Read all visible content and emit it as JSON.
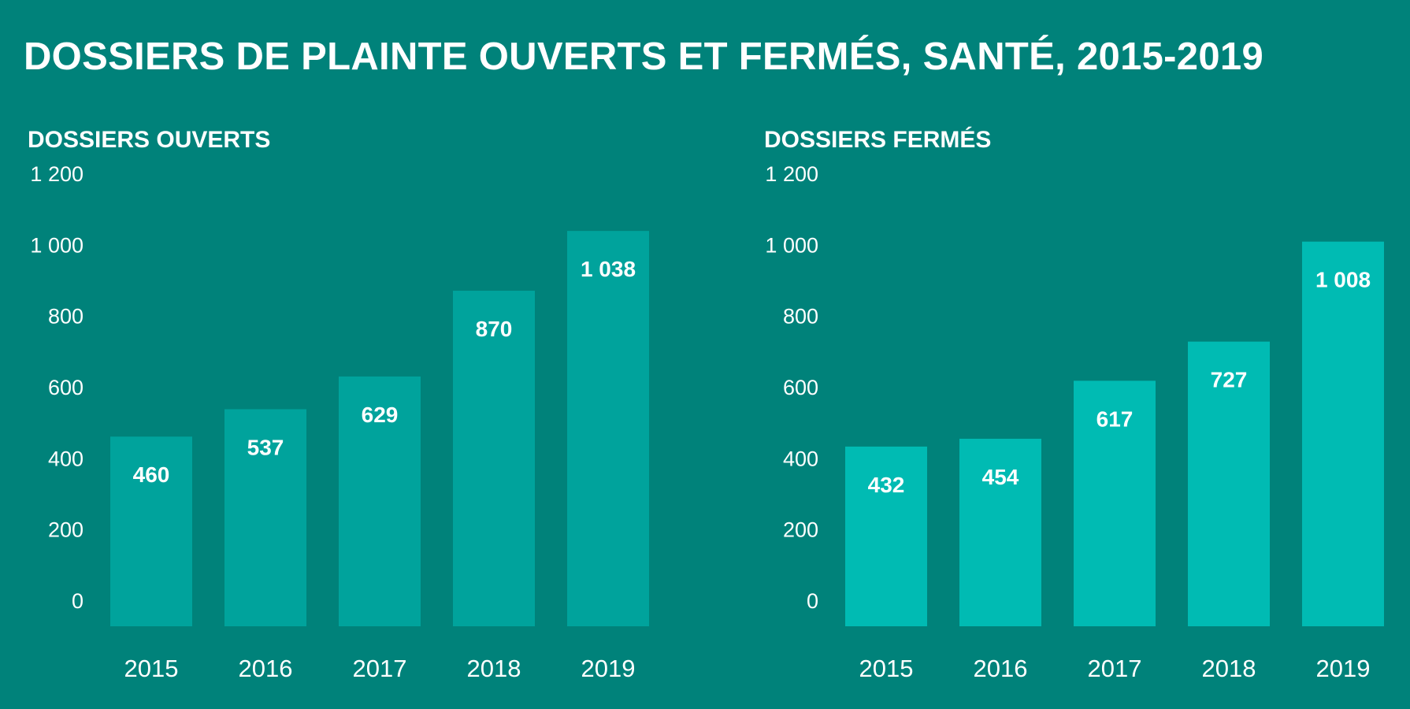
{
  "title": "DOSSIERS DE PLAINTE OUVERTS ET FERMÉS, SANTÉ, 2015-2019",
  "chart_data": [
    {
      "type": "bar",
      "title": "DOSSIERS OUVERTS",
      "categories": [
        "2015",
        "2016",
        "2017",
        "2018",
        "2019"
      ],
      "values": [
        460,
        537,
        629,
        870,
        1038
      ],
      "value_labels": [
        "460",
        "537",
        "629",
        "870",
        "1 038"
      ],
      "ylim": [
        0,
        1200
      ],
      "yticks": [
        0,
        200,
        400,
        600,
        800,
        1000,
        1200
      ],
      "ytick_labels": [
        "0",
        "200",
        "400",
        "600",
        "800",
        "1 000",
        "1 200"
      ],
      "bar_color": "#00a39c",
      "grid": false
    },
    {
      "type": "bar",
      "title": "DOSSIERS FERMÉS",
      "categories": [
        "2015",
        "2016",
        "2017",
        "2018",
        "2019"
      ],
      "values": [
        432,
        454,
        617,
        727,
        1008
      ],
      "value_labels": [
        "432",
        "454",
        "617",
        "727",
        "1 008"
      ],
      "ylim": [
        0,
        1200
      ],
      "yticks": [
        0,
        200,
        400,
        600,
        800,
        1000,
        1200
      ],
      "ytick_labels": [
        "0",
        "200",
        "400",
        "600",
        "800",
        "1 000",
        "1 200"
      ],
      "bar_color": "#00bbb3",
      "grid": false
    }
  ],
  "colors": {
    "background": "#00827a",
    "text": "#ffffff"
  }
}
